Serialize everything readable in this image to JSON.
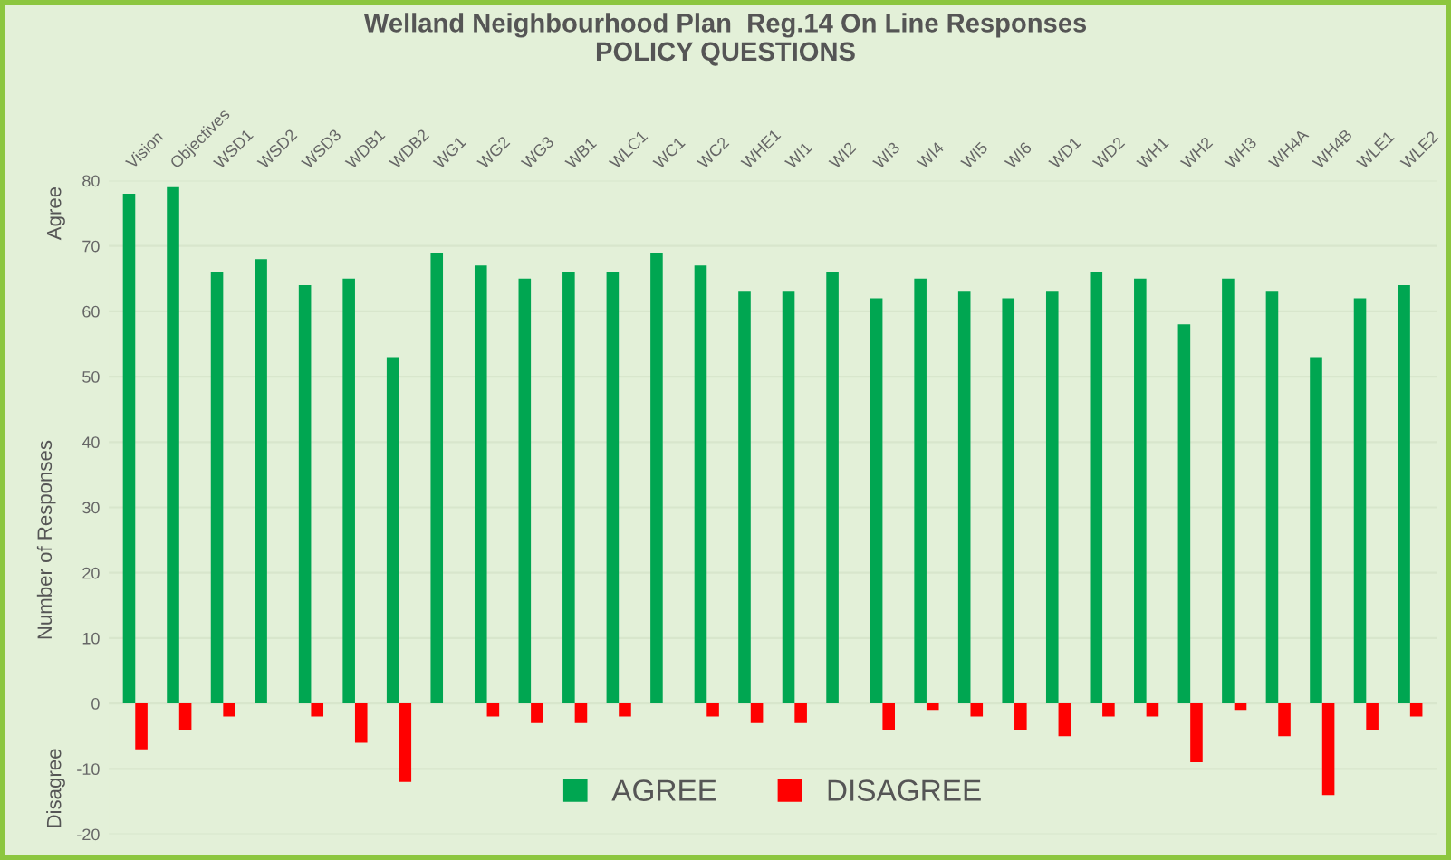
{
  "chart_data": {
    "type": "bar",
    "title": "Welland Neighbourhood Plan  Reg.14 On Line Responses\nPOLICY QUESTIONS",
    "ylabel": "Number of Responses",
    "annotations": [
      "Agree",
      "Disagree"
    ],
    "categories": [
      "Vision",
      "Objectives",
      "WSD1",
      "WSD2",
      "WSD3",
      "WDB1",
      "WDB2",
      "WG1",
      "WG2",
      "WG3",
      "WB1",
      "WLC1",
      "WC1",
      "WC2",
      "WHE1",
      "WI1",
      "WI2",
      "WI3",
      "WI4",
      "WI5",
      "WI6",
      "WD1",
      "WD2",
      "WH1",
      "WH2",
      "WH3",
      "WH4A",
      "WH4B",
      "WLE1",
      "WLE2"
    ],
    "series": [
      {
        "name": "AGREE",
        "color": "#00a651",
        "values": [
          78,
          79,
          66,
          68,
          64,
          65,
          53,
          69,
          67,
          65,
          66,
          66,
          69,
          67,
          63,
          63,
          66,
          62,
          65,
          63,
          62,
          63,
          66,
          65,
          58,
          65,
          63,
          53,
          62,
          64
        ]
      },
      {
        "name": "DISAGREE",
        "color": "#ff0000",
        "values": [
          -7,
          -4,
          -2,
          0,
          -2,
          -6,
          -12,
          0,
          -2,
          -3,
          -3,
          -2,
          0,
          -2,
          -3,
          -3,
          0,
          -4,
          -1,
          -2,
          -4,
          -5,
          -2,
          -2,
          -9,
          -1,
          -5,
          -14,
          -4,
          -2
        ]
      }
    ],
    "ylim": [
      -20,
      80
    ],
    "yticks": [
      -20,
      -10,
      0,
      10,
      20,
      30,
      40,
      50,
      60,
      70,
      80
    ],
    "grid": "y",
    "legend": "bottom"
  }
}
